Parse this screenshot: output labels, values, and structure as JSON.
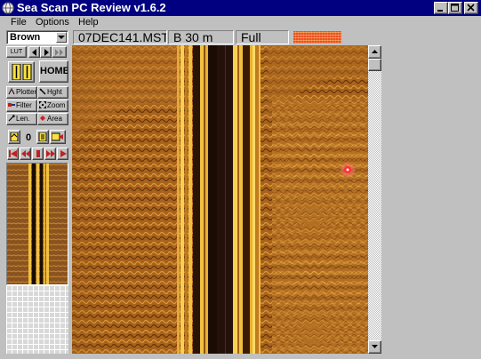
{
  "window": {
    "title": "Sea Scan PC Review v1.6.2",
    "icon": "globe-icon",
    "controls": [
      "minimize-icon",
      "maximize-icon",
      "close-icon"
    ]
  },
  "menu": {
    "file": "File",
    "options": "Options",
    "help": "Help"
  },
  "toolbar": {
    "palette": "Brown",
    "filename": "07DEC141.MST",
    "channel_range": "B 30 m",
    "zoom_mode": "Full"
  },
  "tools": {
    "lut": "LUT",
    "home": "HOME",
    "plotter": "Plotter",
    "height": "Hght",
    "filter": "Filter",
    "zoom": "Zoom",
    "length": "Len.",
    "area": "Area",
    "marker_count": "0"
  },
  "colors": {
    "titlebar": "#000080",
    "window_bg": "#c0c0c0",
    "sonar_dark": "#2a1404",
    "sonar_mid": "#a06020",
    "sonar_bright": "#f0b030",
    "target_marker": "#ff3030"
  }
}
